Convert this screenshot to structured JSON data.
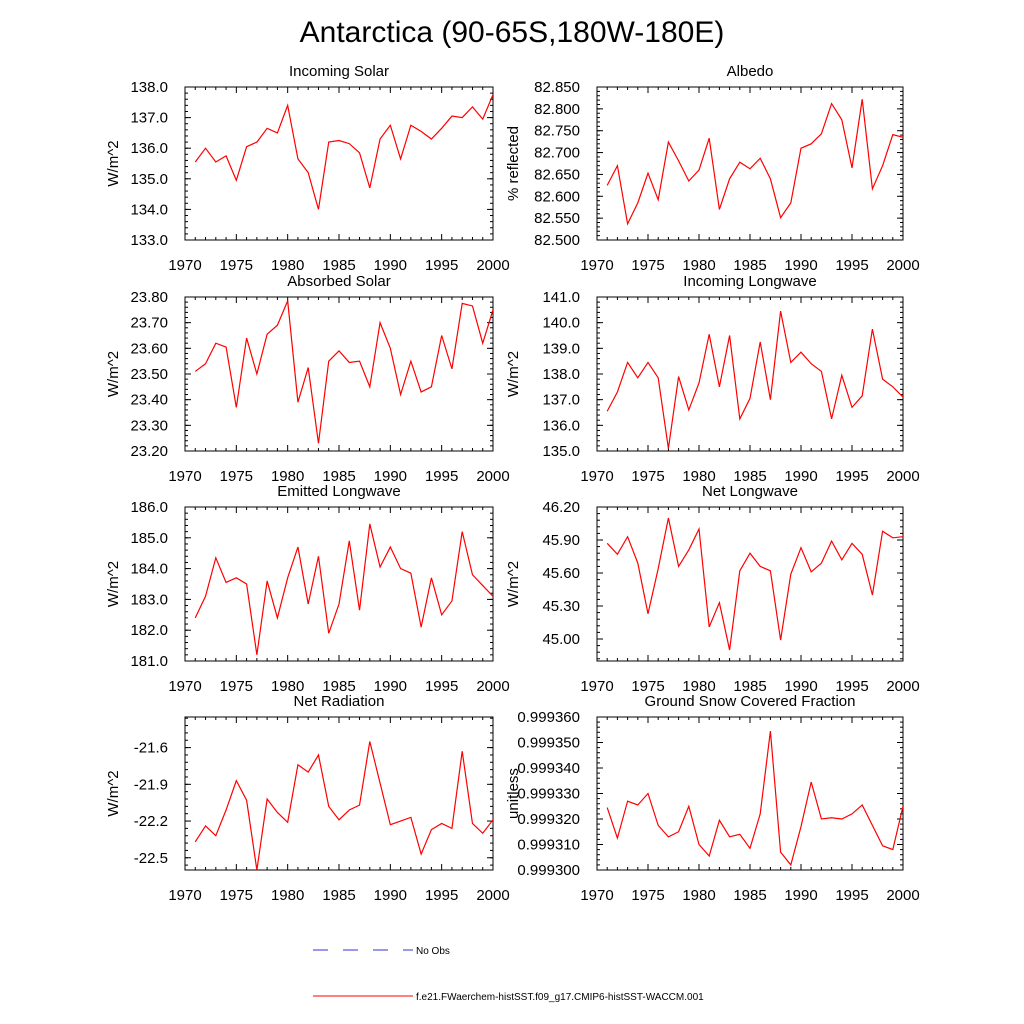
{
  "figure_title": "Antarctica (90-65S,180W-180E)",
  "colors": {
    "model": "#ff0000",
    "obs": "#3333cc",
    "axis": "#000000"
  },
  "legend": {
    "obs_label": "No Obs",
    "model_label": "f.e21.FWaerchem-histSST.f09_g17.CMIP6-histSST-WACCM.001"
  },
  "chart_data": [
    {
      "type": "line",
      "title": "Incoming Solar",
      "xlabel": "",
      "ylabel": "W/m^2",
      "xlim": [
        1970,
        2000
      ],
      "ylim": [
        133.0,
        138.0
      ],
      "xticks": [
        1970,
        1975,
        1980,
        1985,
        1990,
        1995,
        2000
      ],
      "xtick_labels": [
        "1970",
        "1975",
        "1980",
        "1985",
        "1990",
        "1995",
        "2000"
      ],
      "yticks": [
        133,
        134,
        135,
        136,
        137,
        138
      ],
      "ytick_labels": [
        "133.0",
        "134.0",
        "135.0",
        "136.0",
        "137.0",
        "138.0"
      ],
      "x": [
        1971,
        1972,
        1973,
        1974,
        1975,
        1976,
        1977,
        1978,
        1979,
        1980,
        1981,
        1982,
        1983,
        1984,
        1985,
        1986,
        1987,
        1988,
        1989,
        1990,
        1991,
        1992,
        1993,
        1994,
        1995,
        1996,
        1997,
        1998,
        1999,
        2000
      ],
      "series": [
        {
          "name": "f.e21.FWaerchem-histSST.f09_g17.CMIP6-histSST-WACCM.001",
          "values": [
            135.55,
            136.0,
            135.55,
            135.75,
            134.95,
            136.05,
            136.2,
            136.65,
            136.5,
            137.4,
            135.65,
            135.2,
            134.0,
            136.2,
            136.25,
            136.15,
            135.85,
            134.7,
            136.3,
            136.75,
            135.65,
            136.75,
            136.55,
            136.3,
            136.65,
            137.05,
            137.0,
            137.35,
            136.95,
            137.75
          ]
        }
      ]
    },
    {
      "type": "line",
      "title": "Albedo",
      "xlabel": "",
      "ylabel": "% reflected",
      "xlim": [
        1970,
        2000
      ],
      "ylim": [
        82.5,
        82.85
      ],
      "xticks": [
        1970,
        1975,
        1980,
        1985,
        1990,
        1995,
        2000
      ],
      "xtick_labels": [
        "1970",
        "1975",
        "1980",
        "1985",
        "1990",
        "1995",
        "2000"
      ],
      "yticks": [
        82.5,
        82.55,
        82.6,
        82.65,
        82.7,
        82.75,
        82.8,
        82.85
      ],
      "ytick_labels": [
        "82.500",
        "82.550",
        "82.600",
        "82.650",
        "82.700",
        "82.750",
        "82.800",
        "82.850"
      ],
      "x": [
        1971,
        1972,
        1973,
        1974,
        1975,
        1976,
        1977,
        1978,
        1979,
        1980,
        1981,
        1982,
        1983,
        1984,
        1985,
        1986,
        1987,
        1988,
        1989,
        1990,
        1991,
        1992,
        1993,
        1994,
        1995,
        1996,
        1997,
        1998,
        1999,
        2000
      ],
      "series": [
        {
          "name": "f.e21.FWaerchem-histSST.f09_g17.CMIP6-histSST-WACCM.001",
          "values": [
            82.625,
            82.67,
            82.537,
            82.585,
            82.653,
            82.592,
            82.724,
            82.681,
            82.635,
            82.66,
            82.733,
            82.57,
            82.64,
            82.678,
            82.663,
            82.687,
            82.64,
            82.551,
            82.585,
            82.71,
            82.72,
            82.743,
            82.812,
            82.775,
            82.665,
            82.822,
            82.617,
            82.67,
            82.741,
            82.735
          ]
        }
      ]
    },
    {
      "type": "line",
      "title": "Absorbed Solar",
      "xlabel": "",
      "ylabel": "W/m^2",
      "xlim": [
        1970,
        2000
      ],
      "ylim": [
        23.2,
        23.8
      ],
      "xticks": [
        1970,
        1975,
        1980,
        1985,
        1990,
        1995,
        2000
      ],
      "xtick_labels": [
        "1970",
        "1975",
        "1980",
        "1985",
        "1990",
        "1995",
        "2000"
      ],
      "yticks": [
        23.2,
        23.3,
        23.4,
        23.5,
        23.6,
        23.7,
        23.8
      ],
      "ytick_labels": [
        "23.20",
        "23.30",
        "23.40",
        "23.50",
        "23.60",
        "23.70",
        "23.80"
      ],
      "x": [
        1971,
        1972,
        1973,
        1974,
        1975,
        1976,
        1977,
        1978,
        1979,
        1980,
        1981,
        1982,
        1983,
        1984,
        1985,
        1986,
        1987,
        1988,
        1989,
        1990,
        1991,
        1992,
        1993,
        1994,
        1995,
        1996,
        1997,
        1998,
        1999,
        2000
      ],
      "series": [
        {
          "name": "f.e21.FWaerchem-histSST.f09_g17.CMIP6-histSST-WACCM.001",
          "values": [
            23.51,
            23.54,
            23.62,
            23.605,
            23.37,
            23.64,
            23.5,
            23.655,
            23.69,
            23.785,
            23.39,
            23.525,
            23.23,
            23.55,
            23.59,
            23.545,
            23.55,
            23.45,
            23.7,
            23.6,
            23.42,
            23.55,
            23.43,
            23.45,
            23.65,
            23.52,
            23.775,
            23.765,
            23.62,
            23.75
          ]
        }
      ]
    },
    {
      "type": "line",
      "title": "Incoming Longwave",
      "xlabel": "",
      "ylabel": "W/m^2",
      "xlim": [
        1970,
        2000
      ],
      "ylim": [
        135.0,
        141.0
      ],
      "xticks": [
        1970,
        1975,
        1980,
        1985,
        1990,
        1995,
        2000
      ],
      "xtick_labels": [
        "1970",
        "1975",
        "1980",
        "1985",
        "1990",
        "1995",
        "2000"
      ],
      "yticks": [
        135,
        136,
        137,
        138,
        139,
        140,
        141
      ],
      "ytick_labels": [
        "135.0",
        "136.0",
        "137.0",
        "138.0",
        "139.0",
        "140.0",
        "141.0"
      ],
      "x": [
        1971,
        1972,
        1973,
        1974,
        1975,
        1976,
        1977,
        1978,
        1979,
        1980,
        1981,
        1982,
        1983,
        1984,
        1985,
        1986,
        1987,
        1988,
        1989,
        1990,
        1991,
        1992,
        1993,
        1994,
        1995,
        1996,
        1997,
        1998,
        1999,
        2000
      ],
      "series": [
        {
          "name": "f.e21.FWaerchem-histSST.f09_g17.CMIP6-histSST-WACCM.001",
          "values": [
            136.55,
            137.3,
            138.45,
            137.85,
            138.45,
            137.85,
            135.1,
            137.9,
            136.6,
            137.65,
            139.55,
            137.5,
            139.5,
            136.25,
            137.05,
            139.25,
            137.0,
            140.45,
            138.45,
            138.85,
            138.4,
            138.1,
            136.25,
            137.95,
            136.7,
            137.15,
            139.75,
            137.8,
            137.5,
            137.1
          ]
        }
      ]
    },
    {
      "type": "line",
      "title": "Emitted Longwave",
      "xlabel": "",
      "ylabel": "W/m^2",
      "xlim": [
        1970,
        2000
      ],
      "ylim": [
        181.0,
        186.0
      ],
      "xticks": [
        1970,
        1975,
        1980,
        1985,
        1990,
        1995,
        2000
      ],
      "xtick_labels": [
        "1970",
        "1975",
        "1980",
        "1985",
        "1990",
        "1995",
        "2000"
      ],
      "yticks": [
        181,
        182,
        183,
        184,
        185,
        186
      ],
      "ytick_labels": [
        "181.0",
        "182.0",
        "183.0",
        "184.0",
        "185.0",
        "186.0"
      ],
      "x": [
        1971,
        1972,
        1973,
        1974,
        1975,
        1976,
        1977,
        1978,
        1979,
        1980,
        1981,
        1982,
        1983,
        1984,
        1985,
        1986,
        1987,
        1988,
        1989,
        1990,
        1991,
        1992,
        1993,
        1994,
        1995,
        1996,
        1997,
        1998,
        1999,
        2000
      ],
      "series": [
        {
          "name": "f.e21.FWaerchem-histSST.f09_g17.CMIP6-histSST-WACCM.001",
          "values": [
            182.4,
            183.1,
            184.35,
            183.55,
            183.7,
            183.5,
            181.2,
            183.6,
            182.4,
            183.7,
            184.7,
            182.85,
            184.4,
            181.9,
            182.85,
            184.9,
            182.65,
            185.45,
            184.05,
            184.7,
            184.0,
            183.85,
            182.1,
            183.7,
            182.5,
            182.95,
            185.2,
            183.8,
            183.45,
            183.1
          ]
        }
      ]
    },
    {
      "type": "line",
      "title": "Net Longwave",
      "xlabel": "",
      "ylabel": "W/m^2",
      "xlim": [
        1970,
        2000
      ],
      "ylim": [
        44.8,
        46.2
      ],
      "xticks": [
        1970,
        1975,
        1980,
        1985,
        1990,
        1995,
        2000
      ],
      "xtick_labels": [
        "1970",
        "1975",
        "1980",
        "1985",
        "1990",
        "1995",
        "2000"
      ],
      "yticks": [
        45.0,
        45.3,
        45.6,
        45.9,
        46.2
      ],
      "ytick_labels": [
        "45.00",
        "45.30",
        "45.60",
        "45.90",
        "46.20"
      ],
      "x": [
        1971,
        1972,
        1973,
        1974,
        1975,
        1976,
        1977,
        1978,
        1979,
        1980,
        1981,
        1982,
        1983,
        1984,
        1985,
        1986,
        1987,
        1988,
        1989,
        1990,
        1991,
        1992,
        1993,
        1994,
        1995,
        1996,
        1997,
        1998,
        1999,
        2000
      ],
      "series": [
        {
          "name": "f.e21.FWaerchem-histSST.f09_g17.CMIP6-histSST-WACCM.001",
          "values": [
            45.87,
            45.77,
            45.93,
            45.69,
            45.23,
            45.64,
            46.1,
            45.66,
            45.81,
            46.0,
            45.11,
            45.33,
            44.9,
            45.62,
            45.78,
            45.66,
            45.62,
            44.99,
            45.59,
            45.83,
            45.61,
            45.69,
            45.89,
            45.72,
            45.87,
            45.77,
            45.4,
            45.98,
            45.92,
            45.93
          ]
        }
      ]
    },
    {
      "type": "line",
      "title": "Net Radiation",
      "xlabel": "",
      "ylabel": "W/m^2",
      "xlim": [
        1970,
        2000
      ],
      "ylim": [
        -22.6,
        -21.35
      ],
      "xticks": [
        1970,
        1975,
        1980,
        1985,
        1990,
        1995,
        2000
      ],
      "xtick_labels": [
        "1970",
        "1975",
        "1980",
        "1985",
        "1990",
        "1995",
        "2000"
      ],
      "yticks": [
        -22.5,
        -22.2,
        -21.9,
        -21.6
      ],
      "ytick_labels": [
        "-22.5",
        "-22.2",
        "-21.9",
        "-21.6"
      ],
      "x": [
        1971,
        1972,
        1973,
        1974,
        1975,
        1976,
        1977,
        1978,
        1979,
        1980,
        1981,
        1982,
        1983,
        1984,
        1985,
        1986,
        1987,
        1988,
        1989,
        1990,
        1991,
        1992,
        1993,
        1994,
        1995,
        1996,
        1997,
        1998,
        1999,
        2000
      ],
      "series": [
        {
          "name": "f.e21.FWaerchem-histSST.f09_g17.CMIP6-histSST-WACCM.001",
          "values": [
            -22.37,
            -22.24,
            -22.32,
            -22.11,
            -21.87,
            -22.03,
            -22.6,
            -22.02,
            -22.13,
            -22.21,
            -21.74,
            -21.8,
            -21.66,
            -22.08,
            -22.19,
            -22.11,
            -22.07,
            -21.55,
            -21.89,
            -22.23,
            -22.2,
            -22.17,
            -22.47,
            -22.27,
            -22.22,
            -22.26,
            -21.63,
            -22.22,
            -22.3,
            -22.19
          ]
        }
      ]
    },
    {
      "type": "line",
      "title": "Ground Snow Covered Fraction",
      "xlabel": "",
      "ylabel": "unitless",
      "xlim": [
        1970,
        2000
      ],
      "ylim": [
        0.9993,
        0.99936
      ],
      "xticks": [
        1970,
        1975,
        1980,
        1985,
        1990,
        1995,
        2000
      ],
      "xtick_labels": [
        "1970",
        "1975",
        "1980",
        "1985",
        "1990",
        "1995",
        "2000"
      ],
      "yticks": [
        0.9993,
        0.99931,
        0.99932,
        0.99933,
        0.99934,
        0.99935,
        0.99936
      ],
      "ytick_labels": [
        "0.999300",
        "0.999310",
        "0.999320",
        "0.999330",
        "0.999340",
        "0.999350",
        "0.999360"
      ],
      "x": [
        1971,
        1972,
        1973,
        1974,
        1975,
        1976,
        1977,
        1978,
        1979,
        1980,
        1981,
        1982,
        1983,
        1984,
        1985,
        1986,
        1987,
        1988,
        1989,
        1990,
        1991,
        1992,
        1993,
        1994,
        1995,
        1996,
        1997,
        1998,
        1999,
        2000
      ],
      "series": [
        {
          "name": "f.e21.FWaerchem-histSST.f09_g17.CMIP6-histSST-WACCM.001",
          "values": [
            0.9993245,
            0.9993125,
            0.999327,
            0.9993255,
            0.99933,
            0.9993175,
            0.999313,
            0.999315,
            0.999325,
            0.99931,
            0.9993055,
            0.9993195,
            0.999313,
            0.999314,
            0.9993085,
            0.999322,
            0.9993545,
            0.999307,
            0.999302,
            0.999317,
            0.9993345,
            0.99932,
            0.9993205,
            0.99932,
            0.999322,
            0.9993255,
            0.9993175,
            0.9993095,
            0.999308,
            0.999325
          ]
        }
      ]
    }
  ]
}
